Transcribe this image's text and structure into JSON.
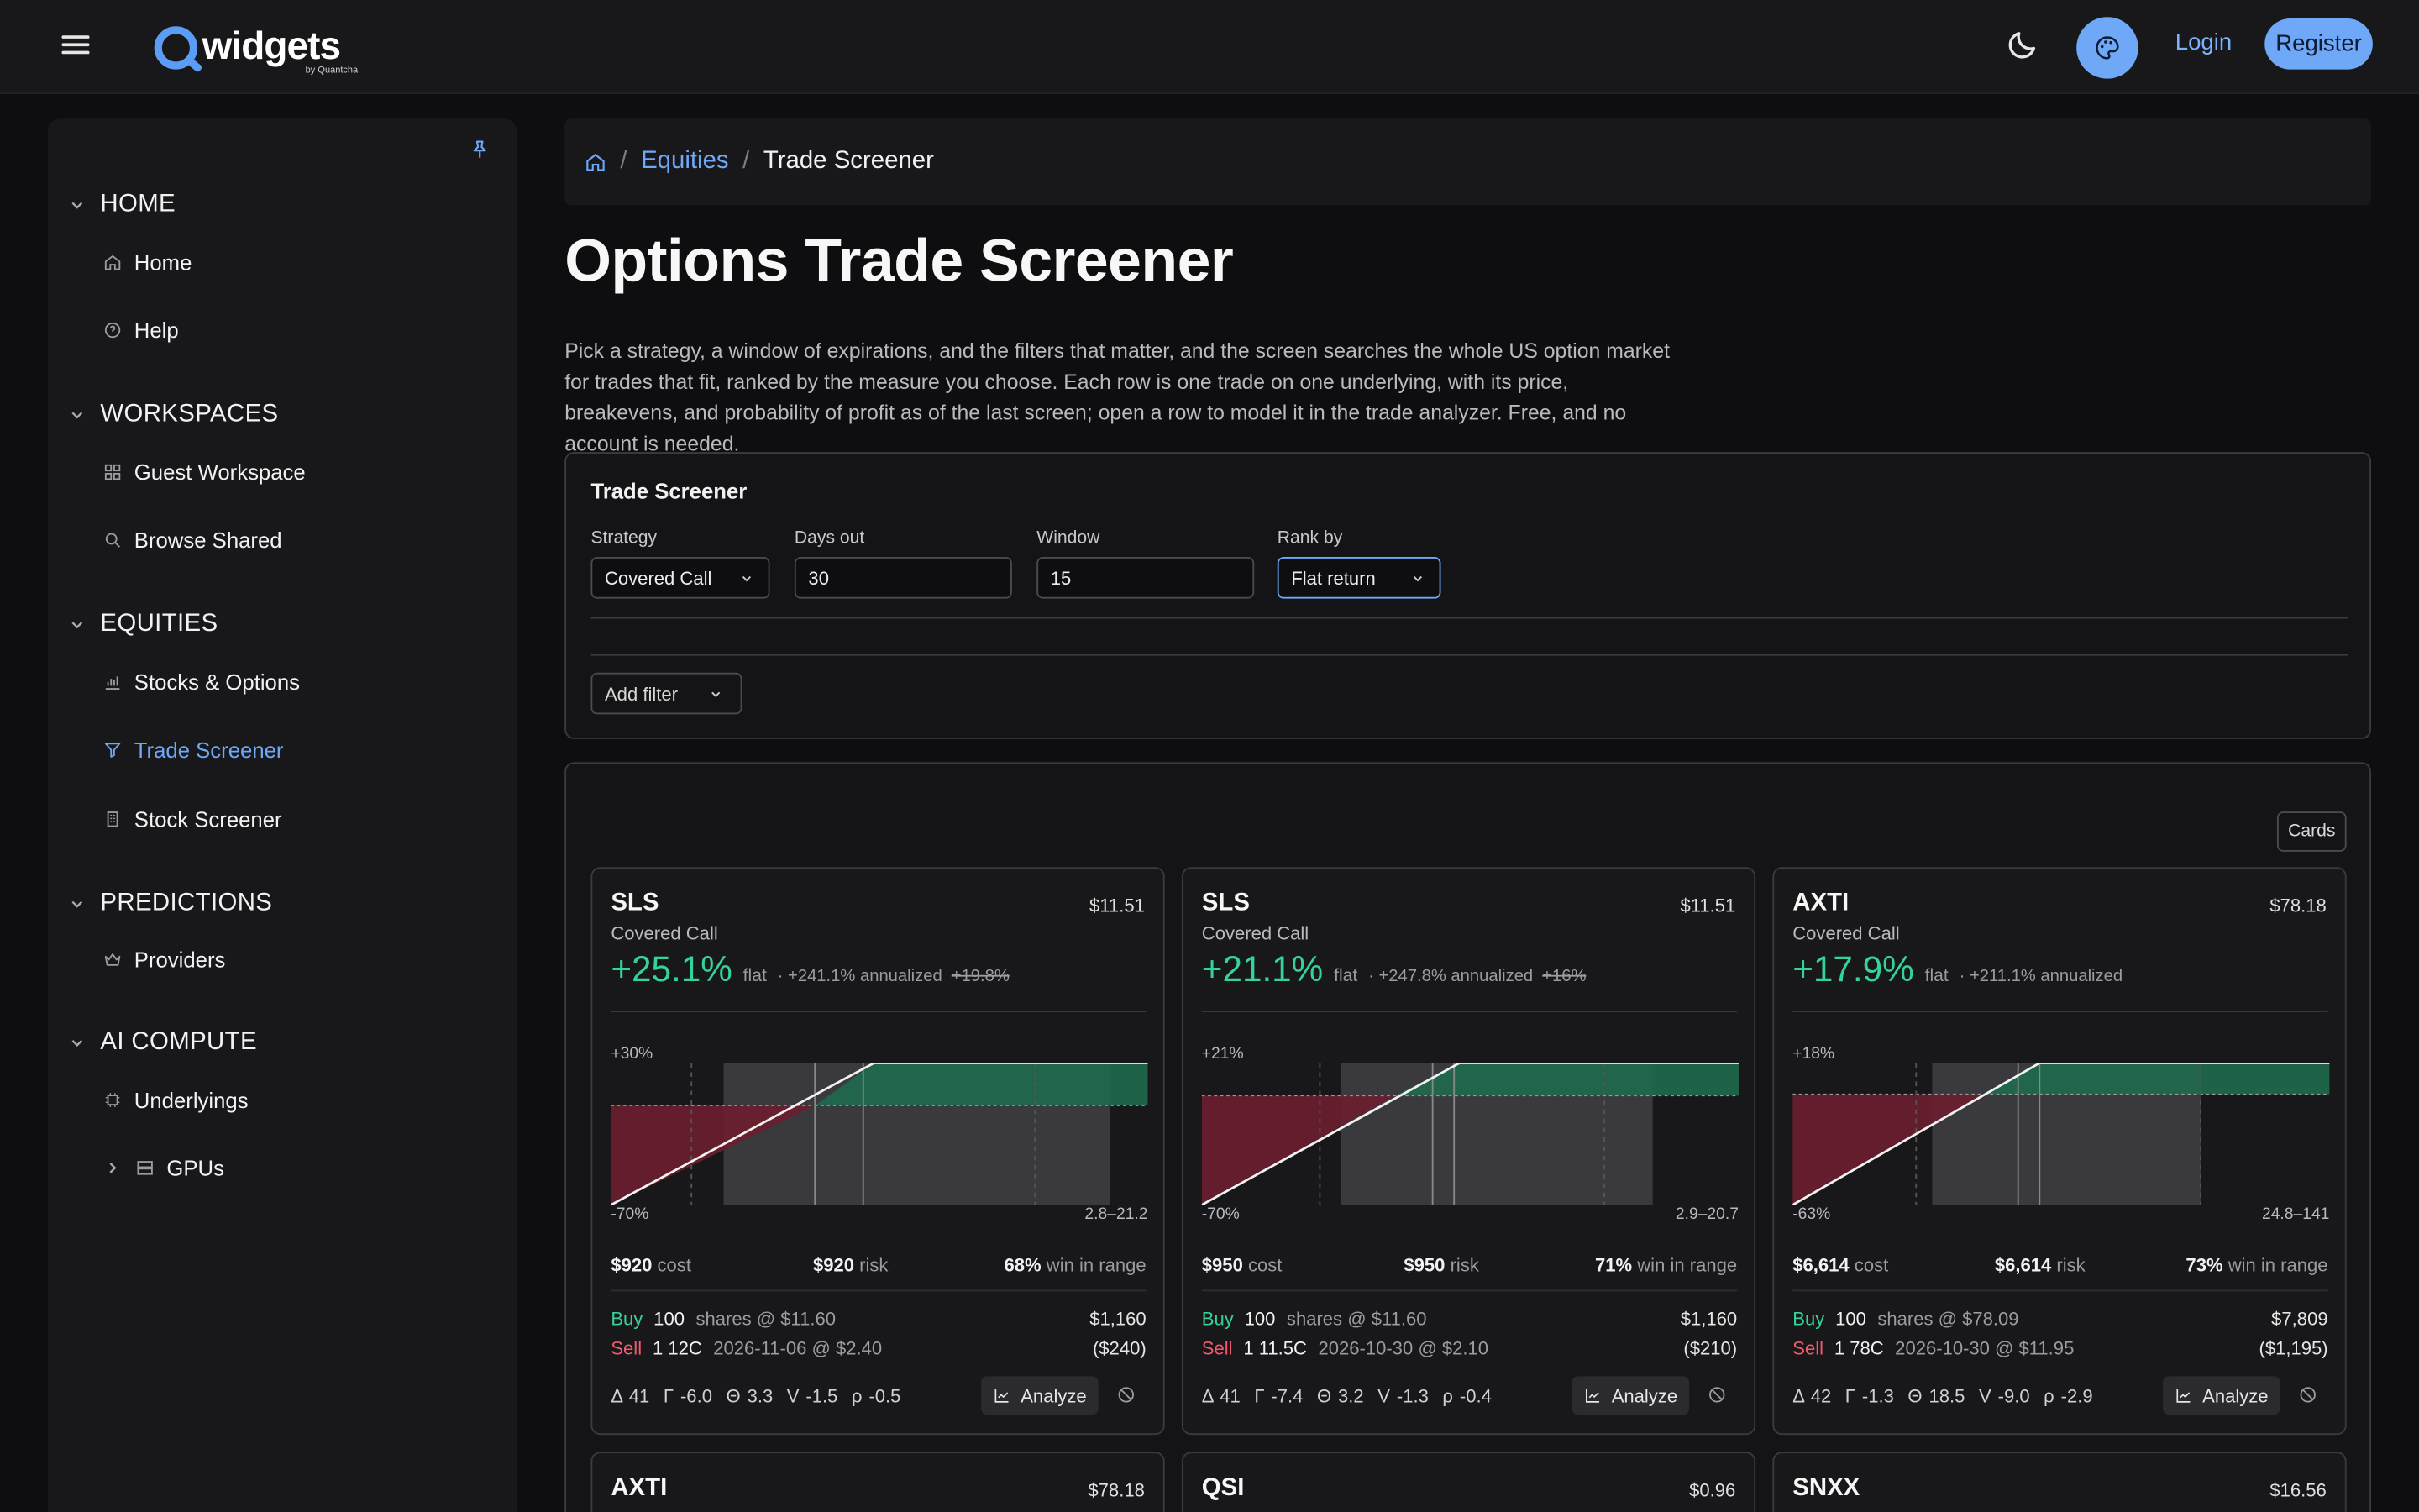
{
  "header": {
    "logo_text": "widgets",
    "logo_sub": "by Quantcha",
    "login_label": "Login",
    "register_label": "Register"
  },
  "sidebar": {
    "sections": [
      {
        "label": "HOME",
        "items": [
          {
            "label": "Home",
            "icon": "home-icon"
          },
          {
            "label": "Help",
            "icon": "help-icon"
          }
        ]
      },
      {
        "label": "WORKSPACES",
        "items": [
          {
            "label": "Guest Workspace",
            "icon": "grid-icon"
          },
          {
            "label": "Browse Shared",
            "icon": "search-icon"
          }
        ]
      },
      {
        "label": "EQUITIES",
        "items": [
          {
            "label": "Stocks & Options",
            "icon": "bar-chart-icon"
          },
          {
            "label": "Trade Screener",
            "icon": "filter-icon",
            "active": true
          },
          {
            "label": "Stock Screener",
            "icon": "building-icon"
          }
        ]
      },
      {
        "label": "PREDICTIONS",
        "items": [
          {
            "label": "Providers",
            "icon": "crown-icon"
          }
        ]
      },
      {
        "label": "AI COMPUTE",
        "items": [
          {
            "label": "Underlyings",
            "icon": "chip-icon"
          },
          {
            "label": "GPUs",
            "icon": "server-icon",
            "expandable": true
          }
        ]
      }
    ]
  },
  "breadcrumb": {
    "parent": "Equities",
    "current": "Trade Screener"
  },
  "page": {
    "title": "Options Trade Screener",
    "intro": "Pick a strategy, a window of expirations, and the filters that matter, and the screen searches the whole US option market for trades that fit, ranked by the measure you choose. Each row is one trade on one underlying, with its price, breakevens, and probability of profit as of the last screen; open a row to model it in the trade analyzer. Free, and no account is needed."
  },
  "screener": {
    "title": "Trade Screener",
    "strategy": {
      "label": "Strategy",
      "value": "Covered Call"
    },
    "days_out": {
      "label": "Days out",
      "value": "30"
    },
    "window": {
      "label": "Window",
      "value": "15"
    },
    "rank_by": {
      "label": "Rank by",
      "value": "Flat return"
    },
    "add_filter_label": "Add filter"
  },
  "results": {
    "view_label": "Cards",
    "cards": [
      {
        "symbol": "SLS",
        "price": "$11.51",
        "strategy": "Covered Call",
        "flat_return": "+25.1%",
        "flat_label": "flat",
        "annualized": "· +241.1% annualized",
        "struck": "+19.8%",
        "chart_top": "+30%",
        "chart_bottom": "-70%",
        "chart_range": "2.8–21.2",
        "chart_data": {
          "type": "area",
          "breakeven_frac": 0.38,
          "cap_frac": 0.49,
          "shade_start": 0.21,
          "shade_end": 0.93,
          "lines": [
            0.15,
            0.38,
            0.47,
            0.79
          ],
          "zero_frac": 0.3
        },
        "cost": "$920",
        "cost_label": "cost",
        "risk": "$920",
        "risk_label": "risk",
        "win": "68%",
        "win_label": "win in range",
        "legs": [
          {
            "action": "Buy",
            "qty": "100",
            "desc": "shares @ $11.60",
            "amount": "$1,160"
          },
          {
            "action": "Sell",
            "qty": "1 12C",
            "desc": "2026-11-06 @ $2.40",
            "amount": "($240)"
          }
        ],
        "greeks": [
          "Δ 41",
          "Γ -6.0",
          "Θ 3.3",
          "V -1.5",
          "ρ -0.5"
        ],
        "analyze_label": "Analyze"
      },
      {
        "symbol": "SLS",
        "price": "$11.51",
        "strategy": "Covered Call",
        "flat_return": "+21.1%",
        "flat_label": "flat",
        "annualized": "· +247.8% annualized",
        "struck": "+16%",
        "chart_top": "+21%",
        "chart_bottom": "-70%",
        "chart_range": "2.9–20.7",
        "chart_data": {
          "type": "area",
          "breakeven_frac": 0.36,
          "cap_frac": 0.48,
          "shade_start": 0.26,
          "shade_end": 0.84,
          "lines": [
            0.22,
            0.43,
            0.47,
            0.75
          ],
          "zero_frac": 0.23
        },
        "cost": "$950",
        "cost_label": "cost",
        "risk": "$950",
        "risk_label": "risk",
        "win": "71%",
        "win_label": "win in range",
        "legs": [
          {
            "action": "Buy",
            "qty": "100",
            "desc": "shares @ $11.60",
            "amount": "$1,160"
          },
          {
            "action": "Sell",
            "qty": "1 11.5C",
            "desc": "2026-10-30 @ $2.10",
            "amount": "($210)"
          }
        ],
        "greeks": [
          "Δ 41",
          "Γ -7.4",
          "Θ 3.2",
          "V -1.3",
          "ρ -0.4"
        ],
        "analyze_label": "Analyze"
      },
      {
        "symbol": "AXTI",
        "price": "$78.18",
        "strategy": "Covered Call",
        "flat_return": "+17.9%",
        "flat_label": "flat",
        "annualized": "· +211.1% annualized",
        "struck": "",
        "chart_top": "+18%",
        "chart_bottom": "-63%",
        "chart_range": "24.8–141",
        "chart_data": {
          "type": "area",
          "breakeven_frac": 0.36,
          "cap_frac": 0.46,
          "shade_start": 0.26,
          "shade_end": 0.76,
          "lines": [
            0.23,
            0.42,
            0.46,
            0.76
          ],
          "zero_frac": 0.22
        },
        "cost": "$6,614",
        "cost_label": "cost",
        "risk": "$6,614",
        "risk_label": "risk",
        "win": "73%",
        "win_label": "win in range",
        "legs": [
          {
            "action": "Buy",
            "qty": "100",
            "desc": "shares @ $78.09",
            "amount": "$7,809"
          },
          {
            "action": "Sell",
            "qty": "1 78C",
            "desc": "2026-10-30 @ $11.95",
            "amount": "($1,195)"
          }
        ],
        "greeks": [
          "Δ 42",
          "Γ -1.3",
          "Θ 18.5",
          "V -9.0",
          "ρ -2.9"
        ],
        "analyze_label": "Analyze"
      },
      {
        "symbol": "AXTI",
        "price": "$78.18"
      },
      {
        "symbol": "QSI",
        "price": "$0.96"
      },
      {
        "symbol": "SNXX",
        "price": "$16.56"
      }
    ]
  },
  "colors": {
    "accent": "#6ea8f7",
    "profit": "#34d399",
    "loss": "#f25a6c"
  }
}
